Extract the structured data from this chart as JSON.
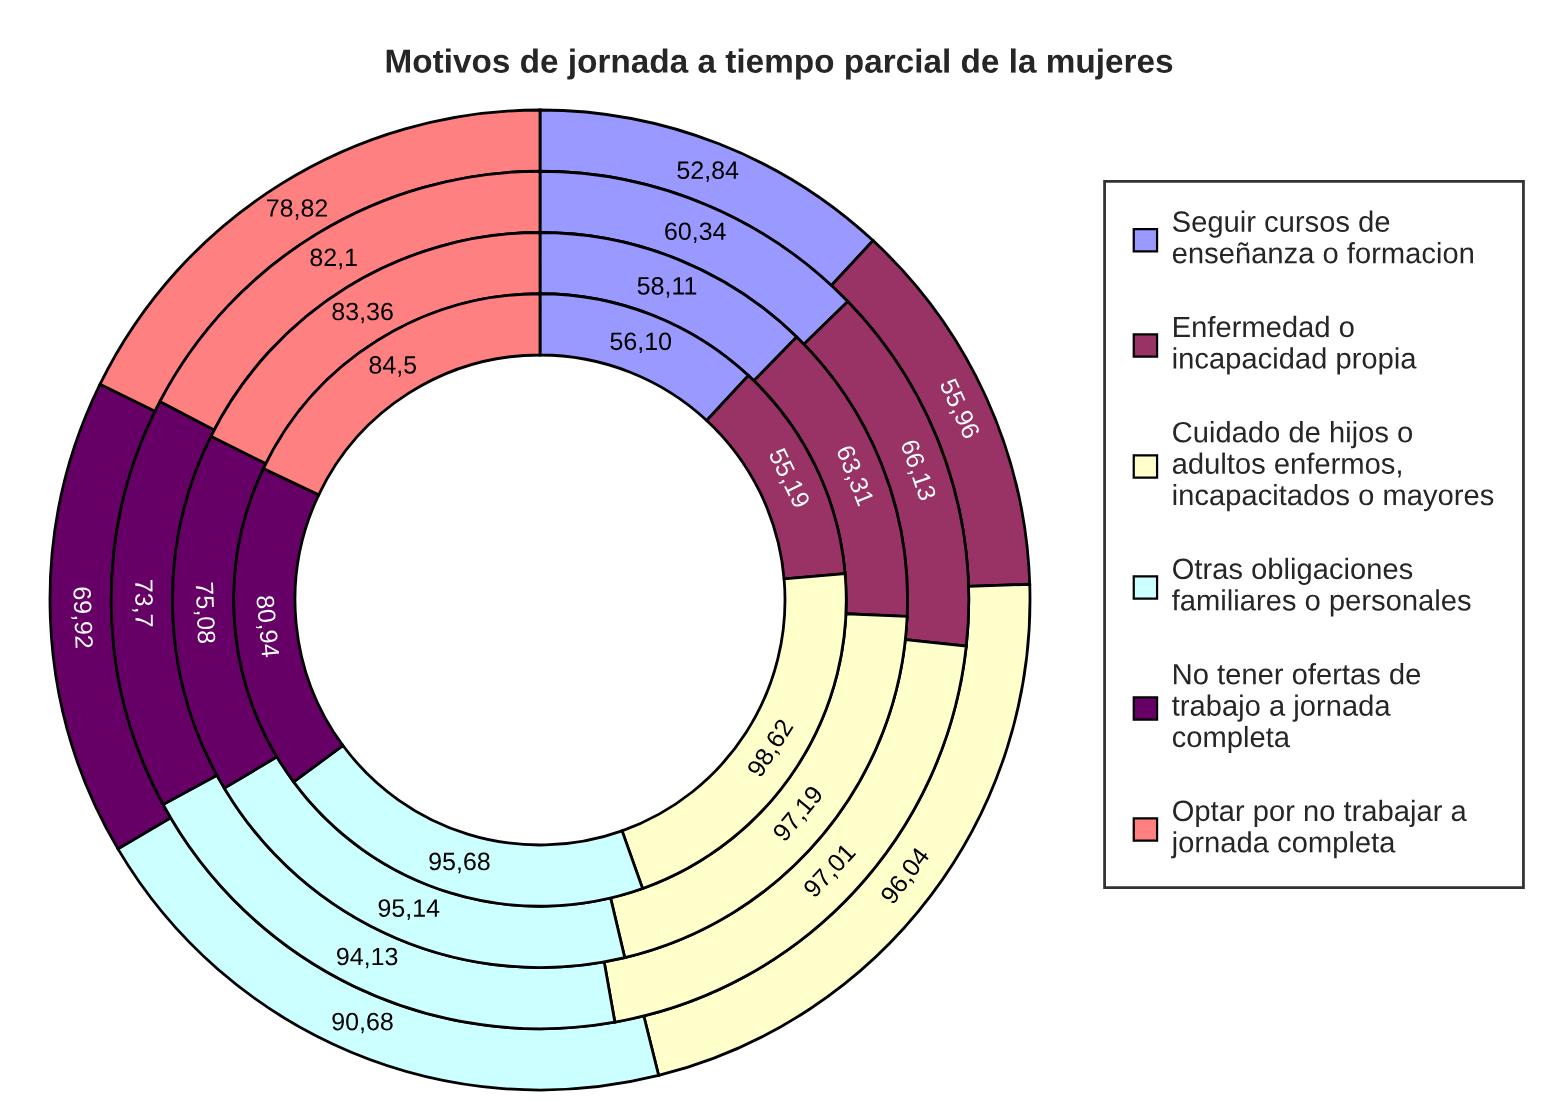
{
  "chart_data": {
    "type": "donut",
    "title": "Motivos de jornada a tiempo parcial de la mujeres",
    "categories": [
      "Seguir cursos de\nenseñanza o formacion",
      "Enfermedad o\nincapacidad propia",
      "Cuidado de hijos o\nadultos enfermos,\nincapacitados o mayores",
      "Otras obligaciones\nfamiliares o personales",
      "No tener ofertas de\ntrabajo a jornada\ncompleta",
      "Optar por no trabajar a\njornada completa"
    ],
    "colors": [
      "#9999ff",
      "#993366",
      "#ffffcc",
      "#ccffff",
      "#660066",
      "#ff8080"
    ],
    "series": [
      {
        "values": [
          52.84,
          55.96,
          96.04,
          90.68,
          69.92,
          78.82
        ],
        "value_labels": [
          "52,84",
          "55,96",
          "96,04",
          "90,68",
          "69,92",
          "78,82"
        ]
      },
      {
        "values": [
          60.34,
          66.13,
          97.01,
          94.13,
          73.7,
          82.1
        ],
        "value_labels": [
          "60,34",
          "66,13",
          "97,01",
          "94,13",
          "73,7",
          "82,1"
        ]
      },
      {
        "values": [
          58.11,
          63.31,
          97.19,
          95.14,
          75.08,
          83.36
        ],
        "value_labels": [
          "58,11",
          "63,31",
          "97,19",
          "95,14",
          "75,08",
          "83,36"
        ]
      },
      {
        "values": [
          56.1,
          55.19,
          98.62,
          95.68,
          80.94,
          84.5
        ],
        "value_labels": [
          "56,10",
          "55,19",
          "98,62",
          "95,68",
          "80,94",
          "84,5"
        ]
      }
    ],
    "legend": "right"
  }
}
